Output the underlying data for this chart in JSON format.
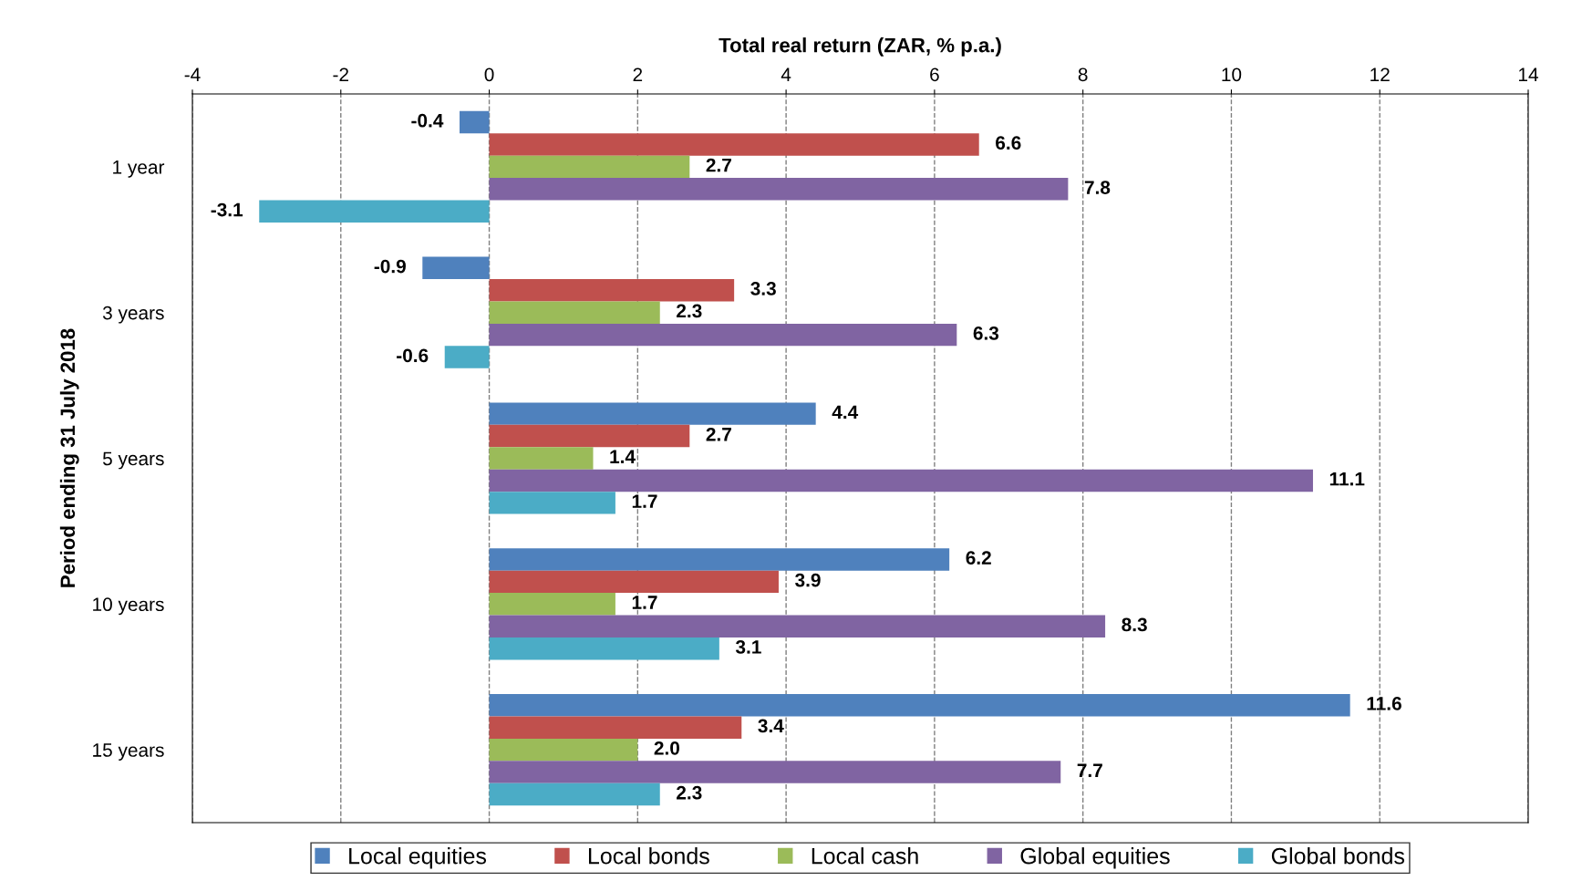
{
  "chart_data": {
    "type": "bar",
    "orientation": "horizontal",
    "xlabel": "Total real return (ZAR, % p.a.)",
    "ylabel": "Period ending 31 July 2018",
    "categories": [
      "1 year",
      "3 years",
      "5 years",
      "10 years",
      "15 years"
    ],
    "series": [
      {
        "name": "Local equities",
        "color": "#4f81bd",
        "values": [
          -0.4,
          -0.9,
          4.4,
          6.2,
          11.6
        ],
        "value_labels": [
          "-0.4",
          "-0.9",
          "4.4",
          "6.2",
          "11.6"
        ]
      },
      {
        "name": "Local bonds",
        "color": "#c0504d",
        "values": [
          6.6,
          3.3,
          2.7,
          3.9,
          3.4
        ],
        "value_labels": [
          "6.6",
          "3.3",
          "2.7",
          "3.9",
          "3.4"
        ]
      },
      {
        "name": "Local cash",
        "color": "#9bbb59",
        "values": [
          2.7,
          2.3,
          1.4,
          1.7,
          2.0
        ],
        "value_labels": [
          "2.7",
          "2.3",
          "1.4",
          "1.7",
          "2.0"
        ]
      },
      {
        "name": "Global equities",
        "color": "#8064a2",
        "values": [
          7.8,
          6.3,
          11.1,
          8.3,
          7.7
        ],
        "value_labels": [
          "7.8",
          "6.3",
          "11.1",
          "8.3",
          "7.7"
        ]
      },
      {
        "name": "Global bonds",
        "color": "#4bacc6",
        "values": [
          -3.1,
          -0.6,
          1.7,
          3.1,
          2.3
        ],
        "value_labels": [
          "-3.1",
          "-0.6",
          "1.7",
          "3.1",
          "2.3"
        ]
      }
    ],
    "xlim": [
      -4,
      14
    ],
    "xticks": [
      -4,
      -2,
      0,
      2,
      4,
      6,
      8,
      10,
      12,
      14
    ],
    "grid": "x",
    "legend": "bottom"
  }
}
